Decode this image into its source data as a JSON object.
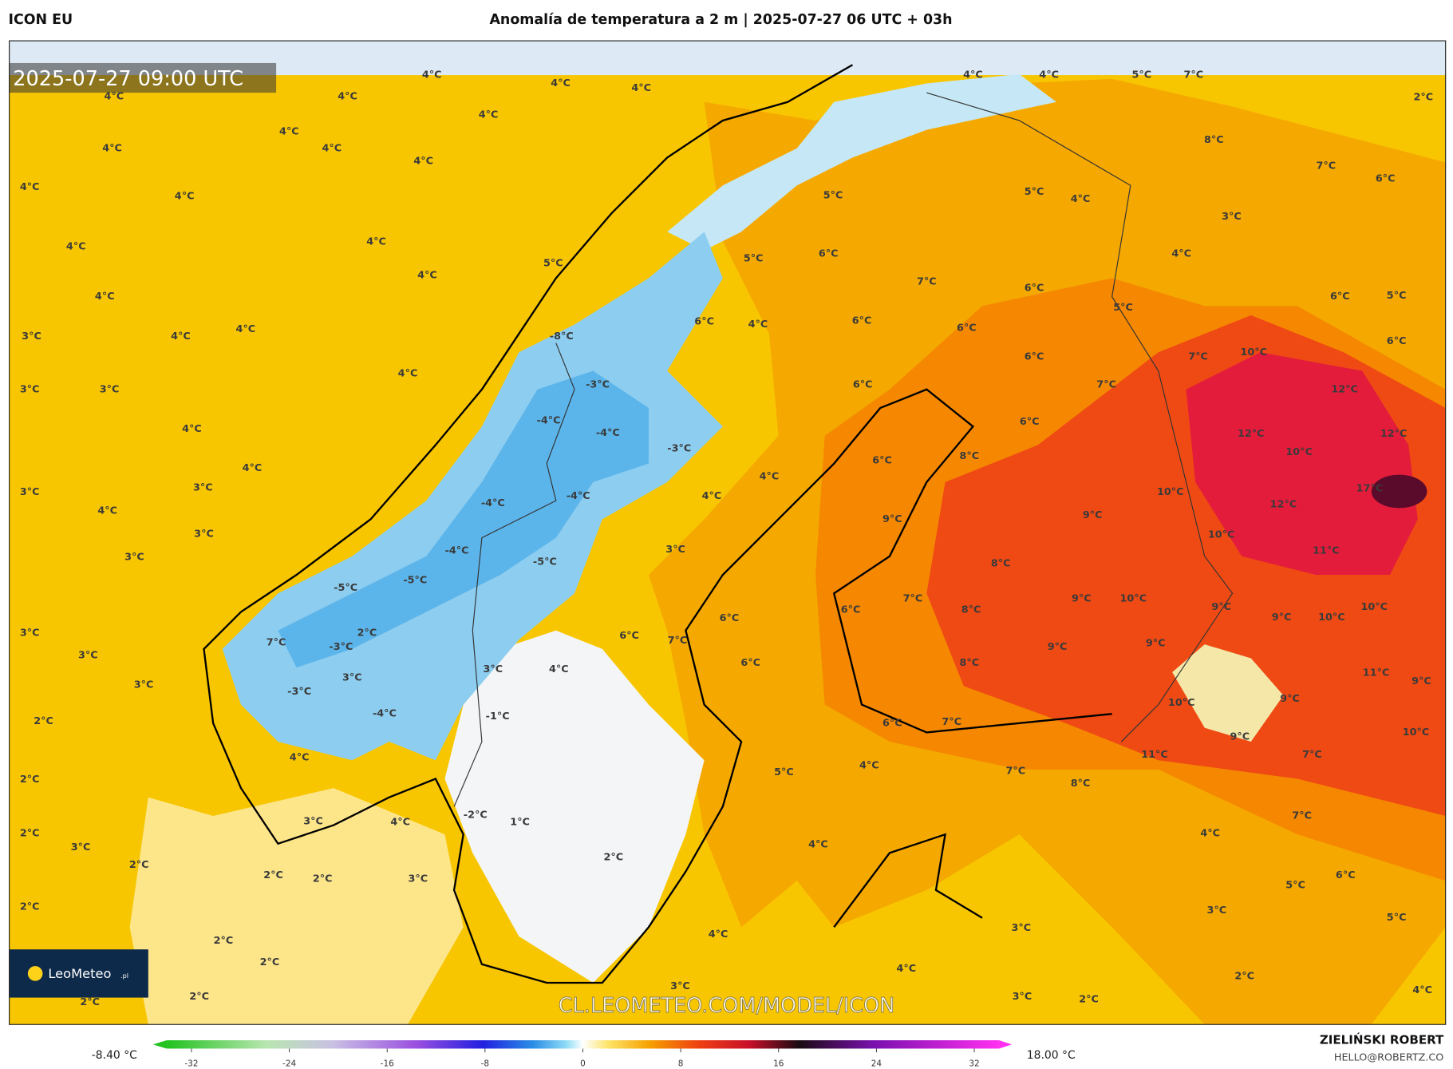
{
  "header": {
    "model": "ICON EU",
    "title": "Anomalía de temperatura a 2 m | 2025-07-27 06 UTC + 03h"
  },
  "map": {
    "timestamp": "2025-07-27 09:00 UTC",
    "watermark": "CL.LEOMETEO.COM/MODEL/ICON",
    "logo": "LeoMeteo",
    "logo_suffix": ".pl",
    "labels": [
      "4°C",
      "4°C",
      "4°C",
      "4°C",
      "4°C",
      "4°C",
      "4°C",
      "4°C",
      "4°C",
      "4°C",
      "4°C",
      "4°C",
      "4°C",
      "4°C",
      "4°C",
      "5°C",
      "4°C",
      "3°C",
      "4°C",
      "4°C",
      "3°C",
      "3°C",
      "4°C",
      "4°C",
      "4°C",
      "3°C",
      "3°C",
      "4°C",
      "3°C",
      "3°C",
      "3°C",
      "3°C",
      "3°C",
      "2°C",
      "2°C",
      "2°C",
      "3°C",
      "2°C",
      "2°C",
      "2°C",
      "2°C",
      "2°C",
      "2°C",
      "-5°C",
      "-5°C",
      "-4°C",
      "-5°C",
      "-4°C",
      "-4°C",
      "-3°C",
      "-4°C",
      "-4°C",
      "-3°C",
      "-8°C",
      "3°C",
      "-1°C",
      "-2°C",
      "1°C",
      "2°C",
      "4°C",
      "6°C",
      "6°C",
      "7°C",
      "6°C",
      "4°C",
      "4°C",
      "3°C",
      "6°C",
      "4°C",
      "5°C",
      "6°C",
      "5°C",
      "5°C",
      "4°C",
      "7°C",
      "6°C",
      "6°C",
      "6°C",
      "6°C",
      "6°C",
      "7°C",
      "6°C",
      "8°C",
      "6°C",
      "9°C",
      "9°C",
      "10°C",
      "10°C",
      "12°C",
      "10°C",
      "12°C",
      "12°C",
      "10°C",
      "7°C",
      "5°C",
      "4°C",
      "3°C",
      "6°C",
      "6°C",
      "5°C",
      "6°C",
      "7°C",
      "8°C",
      "2°C",
      "5°C",
      "7°C",
      "4°C",
      "4°C",
      "17°C",
      "12°C",
      "11°C",
      "10°C",
      "10°C",
      "9°C",
      "9°C",
      "11°C",
      "9°C",
      "10°C",
      "9°C",
      "9°C",
      "10°C",
      "11°C",
      "7°C",
      "7°C",
      "6°C",
      "5°C",
      "5°C",
      "4°C",
      "3°C",
      "4°C",
      "8°C",
      "7°C",
      "8°C",
      "8°C",
      "8°C",
      "9°C",
      "9°C",
      "10°C",
      "9°C",
      "7°C",
      "6°C",
      "7°C",
      "6°C",
      "5°C",
      "4°C",
      "4°C",
      "4°C",
      "3°C",
      "4°C",
      "3°C",
      "2°C",
      "2°C",
      "3°C",
      "4°C",
      "4°C",
      "-4°C",
      "-3°C",
      "3°C",
      "2°C",
      "-3°C",
      "7°C",
      "3°C",
      "2°C",
      "2°C",
      "3°C"
    ]
  },
  "colorbar": {
    "min_label": "-8.40 °C",
    "max_label": "18.00 °C",
    "ticks": [
      -32,
      -24,
      -16,
      -8,
      0,
      8,
      16,
      24,
      32
    ]
  },
  "footer": {
    "author": "ZIELIŃSKI ROBERT",
    "email": "HELLO@ROBERTZ.CO"
  }
}
